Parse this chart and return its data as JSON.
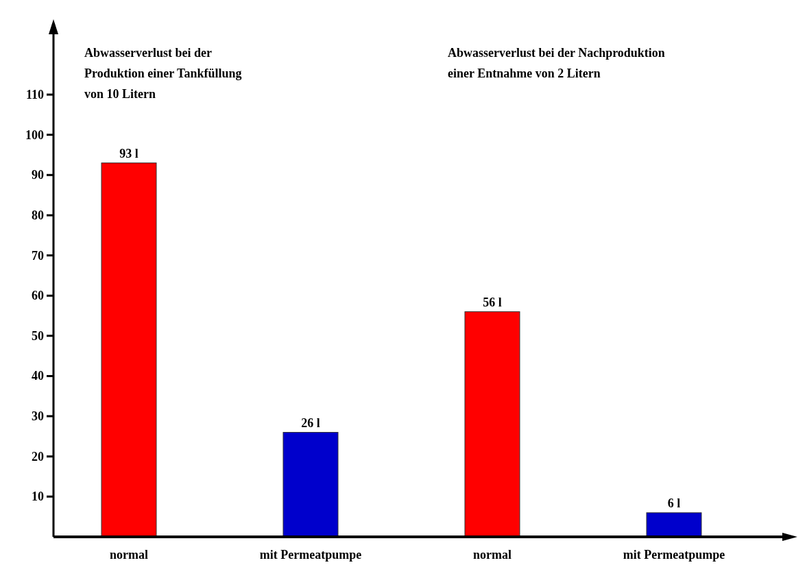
{
  "chart_data": {
    "type": "bar",
    "categories": [
      "normal",
      "mit Permeatpumpe",
      "normal",
      "mit Permeatpumpe"
    ],
    "values": [
      93,
      26,
      56,
      6
    ],
    "colors": [
      "#ff0000",
      "#0000cc",
      "#ff0000",
      "#0000cc"
    ],
    "value_labels": [
      "93 l",
      "26 l",
      "56 l",
      "6 l"
    ],
    "ylim": [
      0,
      125
    ],
    "yticks": [
      10,
      20,
      30,
      40,
      50,
      60,
      70,
      80,
      90,
      100,
      110
    ],
    "grid": false,
    "annotations": [
      "Abwasserverlust bei der\nProduktion einer Tankfüllung\nvon 10 Litern",
      "Abwasserverlust bei der Nachproduktion\neiner Entnahme von 2 Litern"
    ]
  }
}
